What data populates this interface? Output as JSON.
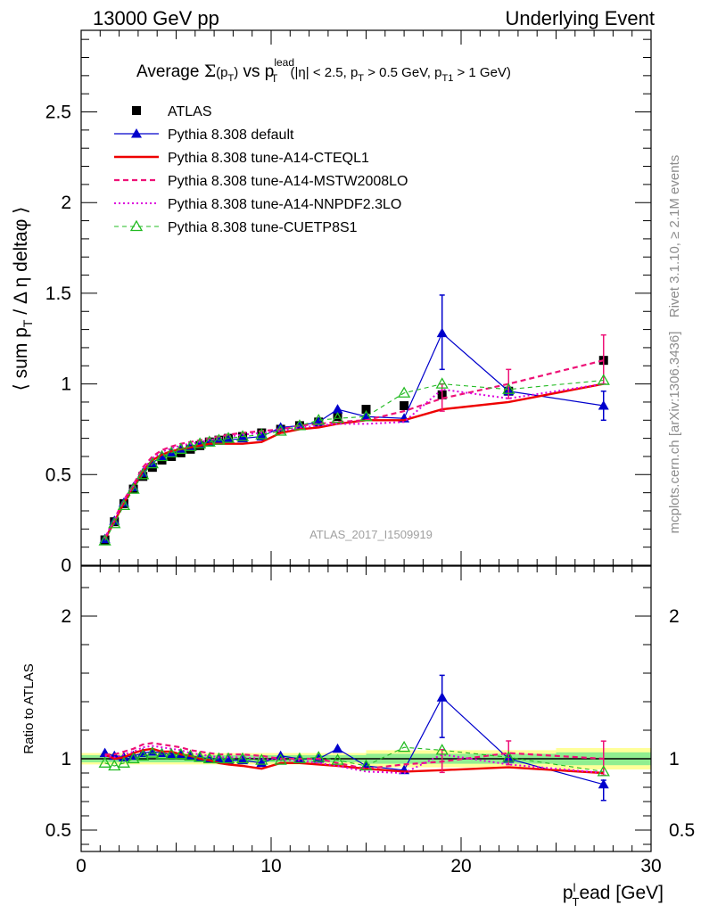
{
  "header": {
    "left": "13000 GeV pp",
    "right": "Underlying Event"
  },
  "title": {
    "prefix": "Average ",
    "sigma": "Σ",
    "sum_arg": "(p",
    "sum_arg_sub": "T",
    "sum_arg_close": ")",
    "vs": " vs p",
    "vs_sup": "lead",
    "vs_sub": "T",
    "cuts_1": " (|η| < 2.5, p",
    "cuts_1_sub": "T",
    "cuts_2": " > 0.5 GeV, p",
    "cuts_2_sub": "T1",
    "cuts_3": " > 1 GeV)"
  },
  "ylabel_main": {
    "open": "⟨ sum p",
    "sub": "T",
    "rest": " / Δ η deltaφ ⟩"
  },
  "ylabel_ratio": "Ratio to ATLAS",
  "xlabel": {
    "p": "p",
    "sup": "l",
    "sub": "T",
    "rest": "ead [GeV]"
  },
  "watermark": "ATLAS_2017_I1509919",
  "side_top": "Rivet 3.1.10, ≥ 2.1M events",
  "side_bottom": "mcplots.cern.ch [arXiv:1306.3436]",
  "colors": {
    "data": "#000000",
    "default": "#0000cc",
    "cteql1": "#ee0000",
    "mstw": "#ee1177",
    "nnpdf": "#dd00dd",
    "cuetp8s1": "#22bb22",
    "band_inner": "#90ee90",
    "band_outer": "#ffff99"
  },
  "chart_data": {
    "type": "scatter",
    "xlim": [
      0,
      30
    ],
    "ylim_main": [
      0,
      2.95
    ],
    "ylim_ratio": [
      0.35,
      2.35
    ],
    "x_ticks": [
      "0",
      "10",
      "20",
      "30"
    ],
    "y_ticks_main": [
      "0",
      "0.5",
      "1",
      "1.5",
      "2",
      "2.5"
    ],
    "y_ticks_ratio": [
      "0.5",
      "1",
      "2"
    ],
    "x": [
      1.25,
      1.75,
      2.25,
      2.75,
      3.25,
      3.75,
      4.25,
      4.75,
      5.25,
      5.75,
      6.25,
      6.75,
      7.25,
      7.75,
      8.5,
      9.5,
      10.5,
      11.5,
      12.5,
      13.5,
      15,
      17,
      19,
      22.5,
      27.5
    ],
    "series": [
      {
        "name": "ATLAS",
        "legend": "ATLAS",
        "key": "data",
        "values": [
          0.14,
          0.24,
          0.34,
          0.42,
          0.49,
          0.54,
          0.58,
          0.6,
          0.62,
          0.64,
          0.66,
          0.68,
          0.69,
          0.7,
          0.71,
          0.73,
          0.75,
          0.77,
          0.79,
          0.82,
          0.86,
          0.88,
          0.94,
          0.96,
          1.13
        ],
        "ratio": []
      },
      {
        "name": "Pythia 8.308 default",
        "legend": "Pythia 8.308 default",
        "key": "default",
        "values": [
          0.145,
          0.245,
          0.345,
          0.43,
          0.51,
          0.565,
          0.6,
          0.62,
          0.64,
          0.655,
          0.67,
          0.68,
          0.69,
          0.69,
          0.7,
          0.71,
          0.76,
          0.77,
          0.79,
          0.86,
          0.82,
          0.81,
          1.28,
          0.96,
          0.88
        ],
        "ratio": [
          1.04,
          1.02,
          1.01,
          1.02,
          1.04,
          1.05,
          1.04,
          1.03,
          1.03,
          1.02,
          1.01,
          1.0,
          1.0,
          0.99,
          0.99,
          0.97,
          1.02,
          1.0,
          1.0,
          1.07,
          0.95,
          0.92,
          1.43,
          1.0,
          0.82
        ],
        "err_x": [
          19,
          22.5,
          27.5
        ],
        "err_lo": [
          1.08,
          0.94,
          0.8
        ],
        "err_hi": [
          1.49,
          0.98,
          0.96
        ]
      },
      {
        "name": "Pythia 8.308 tune-A14-CTEQL1",
        "legend": "Pythia 8.308 tune-A14-CTEQL1",
        "key": "cteql1",
        "values": [
          0.145,
          0.24,
          0.345,
          0.435,
          0.52,
          0.58,
          0.61,
          0.63,
          0.64,
          0.65,
          0.66,
          0.67,
          0.67,
          0.67,
          0.67,
          0.68,
          0.73,
          0.75,
          0.76,
          0.78,
          0.8,
          0.8,
          0.86,
          0.9,
          1.0
        ],
        "ratio": [
          1.03,
          1.0,
          1.01,
          1.04,
          1.06,
          1.07,
          1.05,
          1.05,
          1.03,
          1.02,
          1.0,
          0.99,
          0.97,
          0.96,
          0.95,
          0.93,
          0.97,
          0.97,
          0.96,
          0.95,
          0.93,
          0.91,
          0.92,
          0.94,
          0.9
        ]
      },
      {
        "name": "Pythia 8.308 tune-A14-MSTW2008LO",
        "legend": "Pythia 8.308 tune-A14-MSTW2008LO",
        "key": "mstw",
        "values": [
          0.15,
          0.255,
          0.36,
          0.445,
          0.54,
          0.6,
          0.635,
          0.655,
          0.67,
          0.68,
          0.69,
          0.7,
          0.71,
          0.72,
          0.73,
          0.74,
          0.75,
          0.77,
          0.78,
          0.79,
          0.8,
          0.85,
          0.92,
          1.0,
          1.13
        ],
        "ratio": [
          1.03,
          1.03,
          1.05,
          1.07,
          1.1,
          1.11,
          1.1,
          1.09,
          1.08,
          1.06,
          1.05,
          1.04,
          1.03,
          1.03,
          1.03,
          1.02,
          1.0,
          1.0,
          1.0,
          0.97,
          0.93,
          0.96,
          0.98,
          1.04,
          1.0
        ],
        "err_x": [
          19,
          22.5,
          27.5
        ],
        "err_lo": [
          0.85,
          0.92,
          1.0
        ],
        "err_hi": [
          1.0,
          1.08,
          1.27
        ]
      },
      {
        "name": "Pythia 8.308 tune-A14-NNPDF2.3LO",
        "legend": "Pythia 8.308 tune-A14-NNPDF2.3LO",
        "key": "nnpdf",
        "values": [
          0.15,
          0.25,
          0.355,
          0.44,
          0.53,
          0.59,
          0.625,
          0.645,
          0.66,
          0.67,
          0.68,
          0.69,
          0.7,
          0.71,
          0.72,
          0.73,
          0.74,
          0.76,
          0.77,
          0.78,
          0.78,
          0.79,
          0.97,
          0.92,
          1.0
        ],
        "ratio": [
          1.02,
          1.01,
          1.03,
          1.05,
          1.08,
          1.09,
          1.08,
          1.07,
          1.06,
          1.04,
          1.03,
          1.02,
          1.01,
          1.01,
          1.01,
          1.0,
          0.99,
          0.99,
          0.97,
          0.95,
          0.91,
          0.9,
          1.03,
          0.96,
          0.9
        ]
      },
      {
        "name": "Pythia 8.308 tune-CUETP8S1",
        "legend": "Pythia 8.308 tune-CUETP8S1",
        "key": "cuetp8s1",
        "values": [
          0.135,
          0.23,
          0.33,
          0.42,
          0.5,
          0.56,
          0.6,
          0.62,
          0.64,
          0.655,
          0.67,
          0.68,
          0.69,
          0.7,
          0.71,
          0.72,
          0.74,
          0.77,
          0.8,
          0.81,
          0.82,
          0.95,
          1.0,
          0.97,
          1.02
        ],
        "ratio": [
          0.97,
          0.95,
          0.97,
          1.0,
          1.02,
          1.04,
          1.03,
          1.03,
          1.03,
          1.02,
          1.01,
          1.0,
          1.0,
          1.0,
          1.0,
          0.99,
          0.99,
          1.0,
          1.01,
          0.99,
          0.95,
          1.08,
          1.06,
          1.01,
          0.91
        ]
      }
    ],
    "data_band": {
      "x_edges": [
        0,
        15,
        25,
        30
      ],
      "inner": [
        0.025,
        0.035,
        0.045
      ],
      "outer": [
        0.04,
        0.06,
        0.075
      ]
    }
  }
}
